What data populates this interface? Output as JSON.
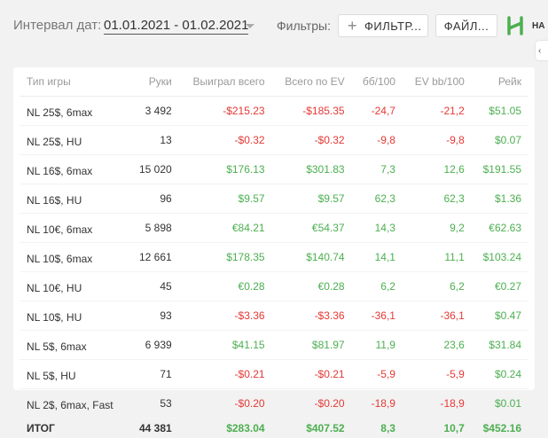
{
  "header": {
    "date_label": "Интервал дат:",
    "date_range": "01.01.2021 - 01.02.2021",
    "filters_label": "Фильтры:",
    "filter_button": "ФИЛЬТР...",
    "file_button": "ФАЙЛ...",
    "logo_text": "НА"
  },
  "colors": {
    "positive": "#4caf50",
    "negative": "#e53935",
    "brand": "#4caf50"
  },
  "table": {
    "columns": [
      "Тип игры",
      "Руки",
      "Выиграл всего",
      "Всего по EV",
      "бб/100",
      "EV bb/100",
      "Рейк"
    ],
    "rows": [
      [
        "NL 25$, 6max",
        "3 492",
        "-$215.23",
        "-$185.35",
        "-24,7",
        "-21,2",
        "$51.05"
      ],
      [
        "NL 25$, HU",
        "13",
        "-$0.32",
        "-$0.32",
        "-9,8",
        "-9,8",
        "$0.07"
      ],
      [
        "NL 16$, 6max",
        "15 020",
        "$176.13",
        "$301.83",
        "7,3",
        "12,6",
        "$191.55"
      ],
      [
        "NL 16$, HU",
        "96",
        "$9.57",
        "$9.57",
        "62,3",
        "62,3",
        "$1.36"
      ],
      [
        "NL 10€, 6max",
        "5 898",
        "€84.21",
        "€54.37",
        "14,3",
        "9,2",
        "€62.63"
      ],
      [
        "NL 10$, 6max",
        "12 661",
        "$178.35",
        "$140.74",
        "14,1",
        "11,1",
        "$103.24"
      ],
      [
        "NL 10€, HU",
        "45",
        "€0.28",
        "€0.28",
        "6,2",
        "6,2",
        "€0.27"
      ],
      [
        "NL 10$, HU",
        "93",
        "-$3.36",
        "-$3.36",
        "-36,1",
        "-36,1",
        "$0.47"
      ],
      [
        "NL 5$, 6max",
        "6 939",
        "$41.15",
        "$81.97",
        "11,9",
        "23,6",
        "$31.84"
      ],
      [
        "NL 5$, HU",
        "71",
        "-$0.21",
        "-$0.21",
        "-5,9",
        "-5,9",
        "$0.24"
      ],
      [
        "NL 2$, 6max, Fast",
        "53",
        "-$0.20",
        "-$0.20",
        "-18,9",
        "-18,9",
        "$0.01"
      ]
    ],
    "total": [
      "ИТОГ",
      "44 381",
      "$283.04",
      "$407.52",
      "8,3",
      "10,7",
      "$452.16"
    ]
  }
}
